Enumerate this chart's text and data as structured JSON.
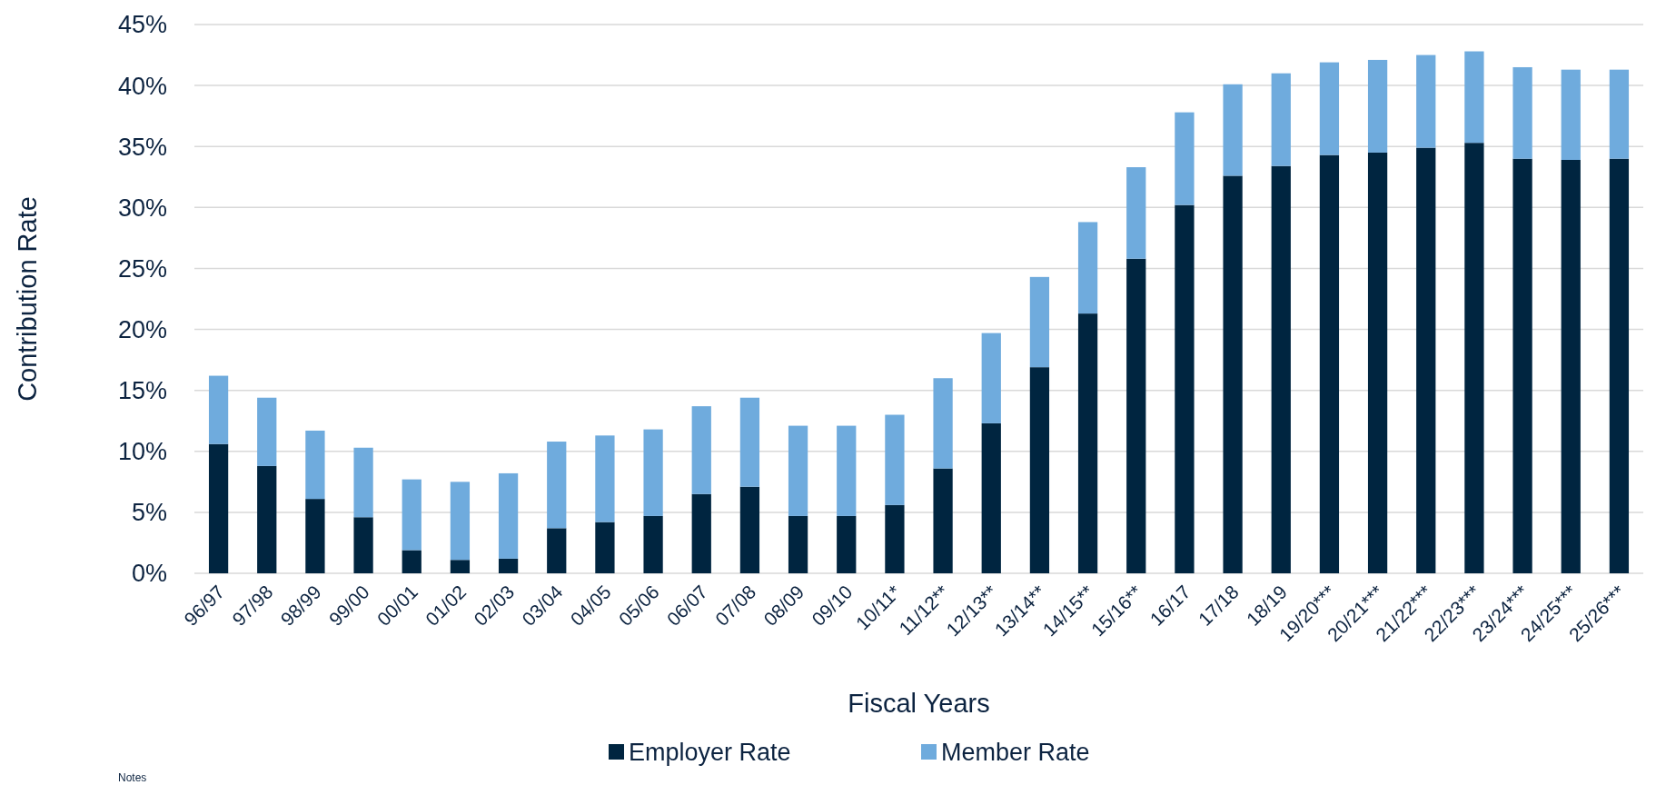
{
  "chart_data": {
    "type": "bar",
    "stacked": true,
    "xlabel": "Fiscal Years",
    "ylabel": "Contribution Rate",
    "categories": [
      "96/97",
      "97/98",
      "98/99",
      "99/00",
      "00/01",
      "01/02",
      "02/03",
      "03/04",
      "04/05",
      "05/06",
      "06/07",
      "07/08",
      "08/09",
      "09/10",
      "10/11*",
      "11/12**",
      "12/13**",
      "13/14**",
      "14/15**",
      "15/16**",
      "16/17",
      "17/18",
      "18/19",
      "19/20***",
      "20/21***",
      "21/22***",
      "22/23***",
      "23/24***",
      "24/25***",
      "25/26***"
    ],
    "series": [
      {
        "name": "Employer Rate",
        "color": "#002540",
        "values": [
          10.6,
          8.8,
          6.1,
          4.6,
          1.9,
          1.1,
          1.2,
          3.7,
          4.2,
          4.7,
          6.5,
          7.1,
          4.7,
          4.7,
          5.6,
          8.6,
          12.3,
          16.9,
          21.3,
          25.8,
          30.2,
          32.6,
          33.4,
          34.3,
          34.5,
          34.9,
          35.3,
          34.0,
          33.9,
          34.0
        ]
      },
      {
        "name": "Member Rate",
        "color": "#6fabdd",
        "values": [
          5.6,
          5.6,
          5.6,
          5.7,
          5.8,
          6.4,
          7.0,
          7.1,
          7.1,
          7.1,
          7.2,
          7.3,
          7.4,
          7.4,
          7.4,
          7.4,
          7.4,
          7.4,
          7.5,
          7.5,
          7.6,
          7.5,
          7.6,
          7.6,
          7.6,
          7.6,
          7.5,
          7.5,
          7.4,
          7.3
        ]
      }
    ],
    "ylim": [
      0,
      45
    ],
    "yticks": [
      {
        "value": 0,
        "label": "0%"
      },
      {
        "value": 5,
        "label": "5%"
      },
      {
        "value": 10,
        "label": "10%"
      },
      {
        "value": 15,
        "label": "15%"
      },
      {
        "value": 20,
        "label": "20%"
      },
      {
        "value": 25,
        "label": "25%"
      },
      {
        "value": 30,
        "label": "30%"
      },
      {
        "value": 35,
        "label": "35%"
      },
      {
        "value": 40,
        "label": "40%"
      },
      {
        "value": 45,
        "label": "45%"
      }
    ],
    "grid": "y",
    "legend": "bottom",
    "annotations": [
      "Notes"
    ]
  }
}
